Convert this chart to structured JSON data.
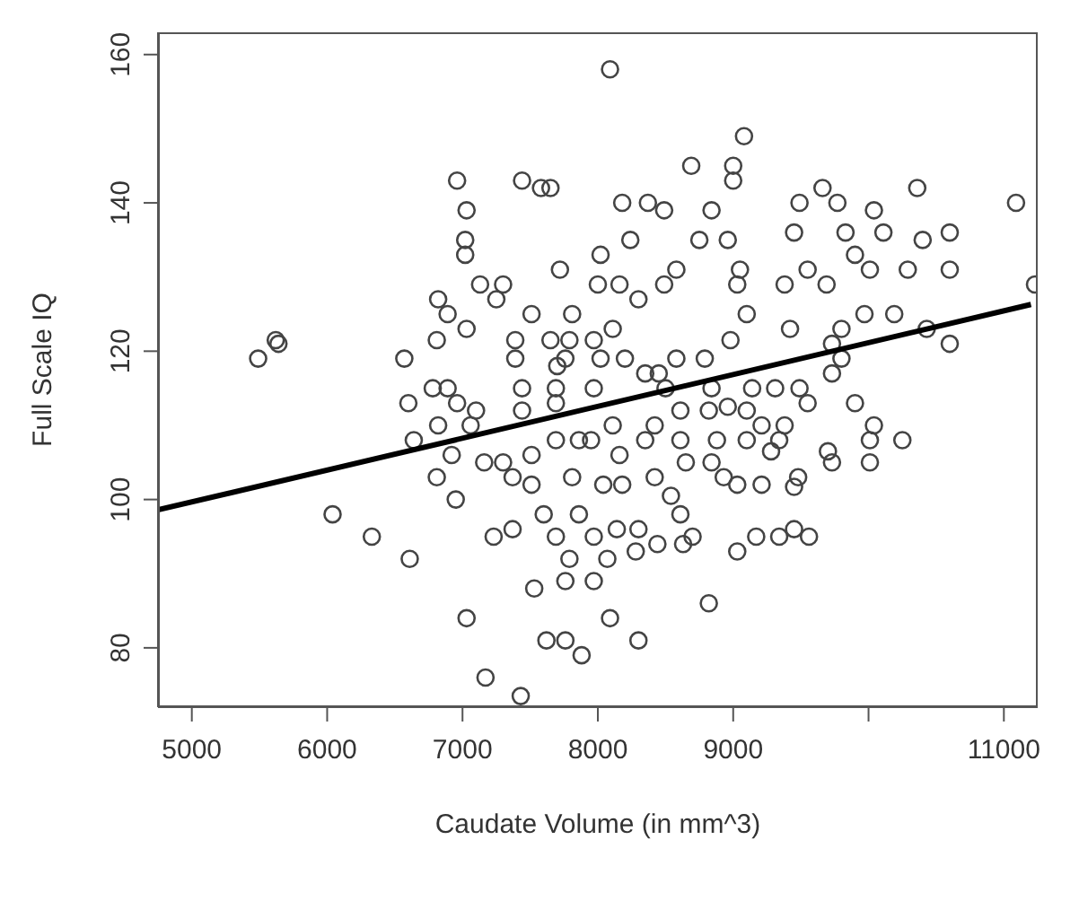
{
  "chart_data": {
    "type": "scatter",
    "xlabel": "Caudate Volume (in mm^3)",
    "ylabel": "Full Scale IQ",
    "xlim": [
      4750,
      11250
    ],
    "ylim": [
      72,
      163
    ],
    "xticks": [
      5000,
      6000,
      7000,
      8000,
      9000,
      {
        "value": 10000,
        "label": null
      },
      11000
    ],
    "yticks": [
      80,
      100,
      120,
      140,
      160
    ],
    "series": [
      {
        "marker": "circle",
        "color": "#444444",
        "x": [
          8090,
          9080,
          8690,
          9000,
          9000,
          8180,
          8370,
          8490,
          8840,
          9490,
          9660,
          9770,
          10040,
          10360,
          11090,
          8240,
          8750,
          8960,
          9450,
          9830,
          10110,
          10400,
          10600,
          8020,
          9900,
          10010,
          10290,
          10600,
          9550,
          9050,
          8000,
          8160,
          8490,
          8580,
          9030,
          9380,
          9690,
          8300,
          9100,
          9970,
          10190,
          10430,
          10600,
          9420,
          9800,
          8110,
          7970,
          8980,
          9730,
          11230,
          6960,
          7440,
          7580,
          7650,
          7030,
          7020,
          7020,
          7720,
          7130,
          7300,
          7250,
          6820,
          6890,
          7030,
          6810,
          7810,
          7510,
          7390,
          7650,
          7790,
          5620,
          5640,
          5490,
          6570,
          7390,
          7760,
          7700,
          8020,
          6600,
          6780,
          6890,
          6960,
          7100,
          7440,
          7690,
          7440,
          7690,
          7970,
          6640,
          6820,
          7060,
          6920,
          7160,
          7300,
          7510,
          7690,
          7860,
          7370,
          7510,
          6810,
          6950,
          7810,
          8040,
          7600,
          7860,
          6040,
          6330,
          6610,
          7230,
          7370,
          7690,
          7970,
          7790,
          8070,
          7760,
          7970,
          7530,
          7030,
          7620,
          7760,
          7880,
          7170,
          7430,
          8090,
          8300,
          8820,
          9030,
          9170,
          9340,
          9450,
          9560,
          8140,
          8300,
          8440,
          8630,
          8700,
          8280,
          8540,
          8610,
          8420,
          8180,
          8930,
          9030,
          9210,
          9480,
          9450,
          9730,
          9700,
          10010,
          10010,
          10250,
          10040,
          9900,
          8650,
          8840,
          8610,
          8880,
          9100,
          9280,
          9340,
          9380,
          9210,
          9100,
          8820,
          8610,
          8420,
          8350,
          8160,
          8110,
          7950,
          8350,
          8580,
          8790,
          9140,
          9310,
          9550,
          9490,
          9730,
          9800,
          8840,
          8960,
          8200,
          8450,
          8500
        ],
        "values": [
          158,
          149,
          145,
          145,
          143,
          140,
          140,
          139,
          139,
          140,
          142,
          140,
          139,
          142,
          140,
          135,
          135,
          135,
          136,
          136,
          136,
          135,
          136,
          133,
          133,
          131,
          131,
          131,
          131,
          131,
          129,
          129,
          129,
          131,
          129,
          129,
          129,
          127,
          125,
          125,
          125,
          123,
          121,
          123,
          123,
          123,
          121.5,
          121.5,
          121,
          129,
          143,
          143,
          142,
          142,
          139,
          135,
          133,
          131,
          129,
          129,
          127,
          127,
          125,
          123,
          121.5,
          125,
          125,
          121.5,
          121.5,
          121.5,
          121.5,
          121,
          119,
          119,
          119,
          119,
          118,
          119,
          113,
          115,
          115,
          113,
          112,
          115,
          115,
          112,
          113,
          115,
          108,
          110,
          110,
          106,
          105,
          105,
          106,
          108,
          108,
          103,
          102,
          103,
          100,
          103,
          102,
          98,
          98,
          98,
          95,
          92,
          95,
          96,
          95,
          95,
          92,
          92,
          89,
          89,
          88,
          84,
          81,
          81,
          79,
          76,
          73.5,
          84,
          81,
          86,
          93,
          95,
          95,
          96,
          95,
          96,
          96,
          94,
          94,
          95,
          93,
          100.5,
          98,
          103,
          102,
          103,
          102,
          102,
          103,
          101.7,
          105,
          106.5,
          105,
          108,
          108,
          110,
          113,
          105,
          105,
          108,
          108,
          108,
          106.5,
          108,
          110,
          110,
          112,
          112,
          112,
          110,
          108,
          106,
          110,
          108,
          117,
          119,
          119,
          115,
          115,
          113,
          115,
          117,
          119,
          115,
          112.5,
          119,
          117,
          115
        ]
      },
      {
        "type": "line",
        "marker": "none",
        "color": "#000000",
        "x": [
          4750,
          11200
        ],
        "values": [
          98.6,
          126.3
        ]
      }
    ]
  }
}
